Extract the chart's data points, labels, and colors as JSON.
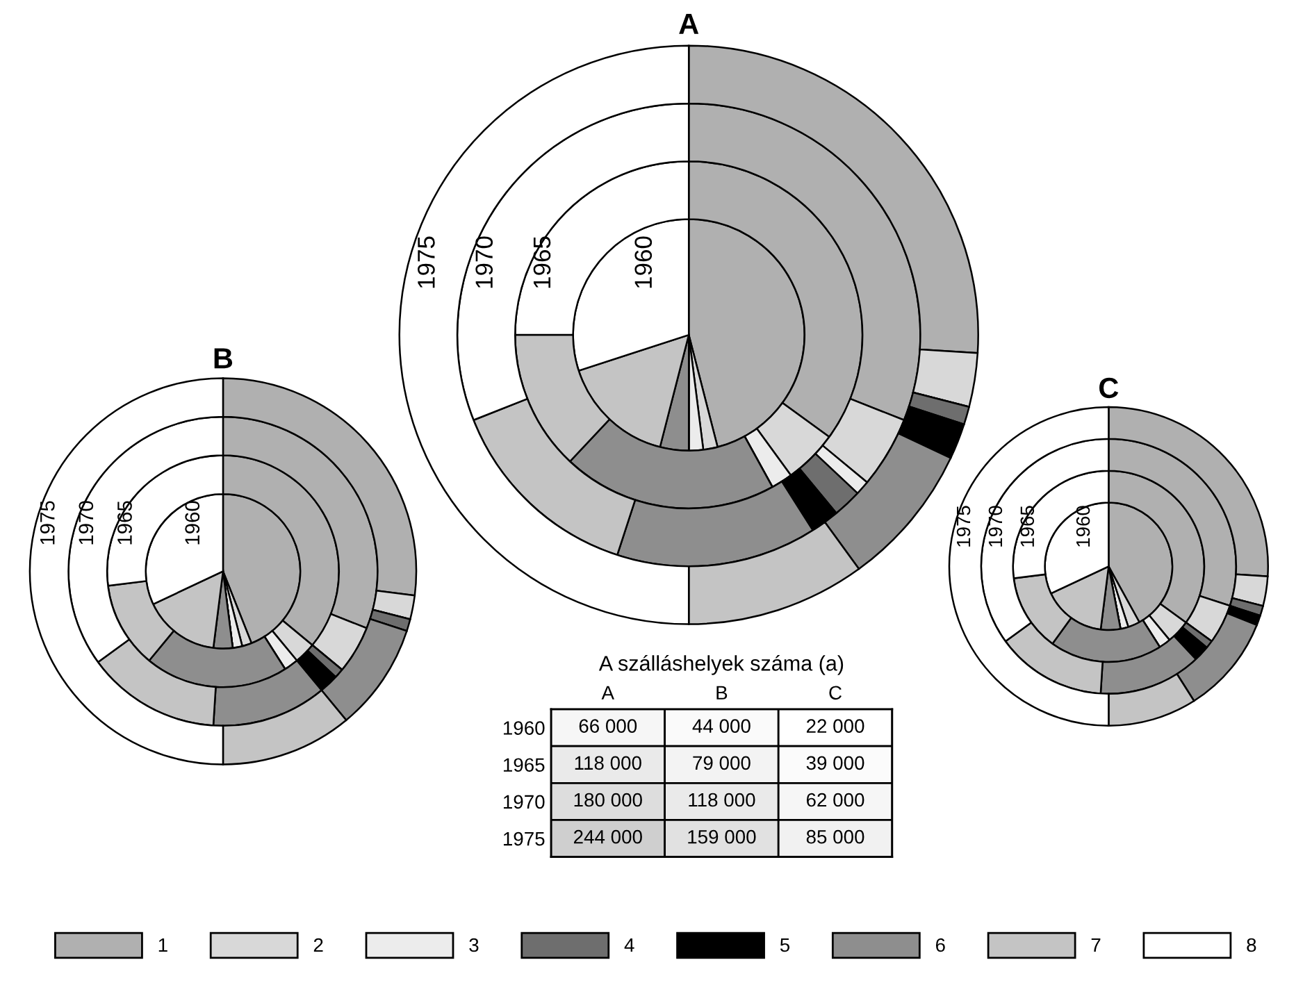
{
  "chart_data": [
    {
      "type": "donut",
      "title": "B",
      "categories": [
        "1",
        "2",
        "3",
        "4",
        "5",
        "6",
        "7",
        "8"
      ],
      "colors": [
        "#b0b0b0",
        "#d8d8d8",
        "#ececec",
        "#6e6e6e",
        "#000000",
        "#8e8e8e",
        "#c4c4c4",
        "#ffffff"
      ],
      "legend": "bottom",
      "series": [
        {
          "name": "1960",
          "values": [
            44,
            2,
            2,
            null,
            null,
            4,
            16,
            32
          ]
        },
        {
          "name": "1965",
          "values": [
            36,
            3,
            2,
            null,
            null,
            20,
            12,
            27
          ]
        },
        {
          "name": "1970",
          "values": [
            31,
            5,
            null,
            1,
            2,
            12,
            14,
            35
          ]
        },
        {
          "name": "1975",
          "values": [
            27,
            2,
            null,
            1,
            null,
            9,
            11,
            50
          ]
        }
      ]
    },
    {
      "type": "donut",
      "title": "A",
      "categories": [
        null,
        null,
        null,
        null,
        null,
        null,
        null,
        null
      ],
      "colors": [
        "#b0b0b0",
        "#d8d8d8",
        "#ececec",
        "#6e6e6e",
        "#000000",
        "#8e8e8e",
        "#c4c4c4",
        "#ffffff"
      ],
      "series": [
        {
          "name": "1960",
          "values": [
            46,
            2,
            2,
            null,
            null,
            4,
            16,
            30
          ]
        },
        {
          "name": "1965",
          "values": [
            35,
            5,
            2,
            null,
            null,
            20,
            13,
            25
          ]
        },
        {
          "name": "1970",
          "values": [
            31,
            5,
            1,
            2,
            2,
            14,
            14,
            31
          ]
        },
        {
          "name": "1975",
          "values": [
            26,
            3,
            null,
            1,
            2,
            8,
            10,
            50
          ]
        }
      ]
    },
    {
      "type": "donut",
      "title": "C",
      "categories": [
        null,
        null,
        null,
        null,
        null,
        null,
        null,
        null
      ],
      "colors": [
        "#b0b0b0",
        "#d8d8d8",
        "#ececec",
        "#6e6e6e",
        "#000000",
        "#8e8e8e",
        "#c4c4c4",
        "#ffffff"
      ],
      "series": [
        {
          "name": "1960",
          "values": [
            42,
            3,
            2,
            null,
            null,
            5,
            16,
            32
          ]
        },
        {
          "name": "1965",
          "values": [
            35,
            4,
            2,
            null,
            null,
            19,
            13,
            27
          ]
        },
        {
          "name": "1970",
          "values": [
            30,
            5,
            null,
            1,
            2,
            13,
            14,
            35
          ]
        },
        {
          "name": "1975",
          "values": [
            26,
            3,
            null,
            1,
            1,
            10,
            9,
            50
          ]
        }
      ]
    },
    {
      "type": "heatmap",
      "title": "A szálláshelyek száma (a)",
      "categories": [
        "A",
        "B",
        "C"
      ],
      "y_categories": [
        "1960",
        "1965",
        "1970",
        "1975"
      ],
      "cells": [
        [
          66000,
          44000,
          22000
        ],
        [
          118000,
          79000,
          39000
        ],
        [
          180000,
          118000,
          62000
        ],
        [
          244000,
          159000,
          85000
        ]
      ],
      "cell_labels": [
        [
          "66 000",
          "44 000",
          "22 000"
        ],
        [
          "118 000",
          "79 000",
          "39 000"
        ],
        [
          "180 000",
          "118 000",
          "62 000"
        ],
        [
          "244 000",
          "159 000",
          "85 000"
        ]
      ]
    }
  ]
}
